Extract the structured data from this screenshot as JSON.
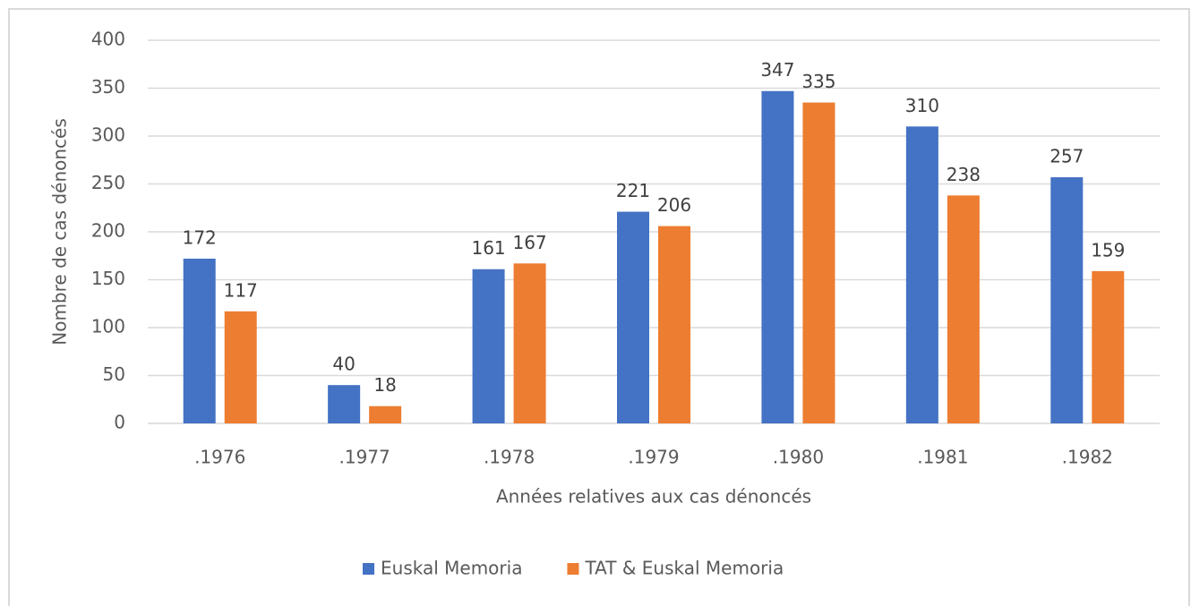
{
  "chart_data": {
    "type": "bar",
    "x_label": "Années relatives aux cas dénoncés",
    "y_label": "Nombre de cas dénoncés",
    "categories": [
      ".1976",
      ".1977",
      ".1978",
      ".1979",
      ".1980",
      ".1981",
      ".1982"
    ],
    "series": [
      {
        "name": "Euskal Memoria",
        "color": "#4472c4",
        "values": [
          172,
          40,
          161,
          221,
          347,
          310,
          257
        ]
      },
      {
        "name": "TAT & Euskal Memoria",
        "color": "#ed7d31",
        "values": [
          117,
          18,
          167,
          206,
          335,
          238,
          159
        ]
      }
    ],
    "ylim": [
      0,
      400
    ],
    "yticks": [
      0,
      50,
      100,
      150,
      200,
      250,
      300,
      350,
      400
    ],
    "grid": true,
    "legend": "bottom"
  }
}
